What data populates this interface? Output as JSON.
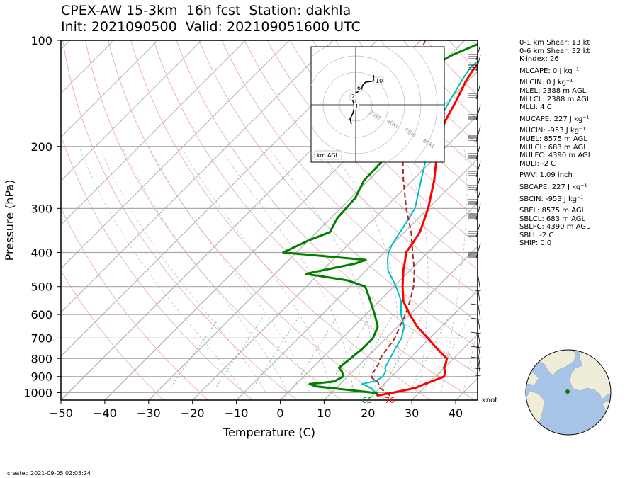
{
  "title": {
    "line1": "CPEX-AW 15-3km  16h fcst  Station: dakhla",
    "line2": "Init: 2021090500  Valid: 202109051600 UTC"
  },
  "parameters": [
    "0-1 km Shear: 13 kt",
    "0-6 km Shear: 32 kt",
    "K-index: 26",
    "MLCAPE: 0 J kg⁻¹",
    "MLCIN: 0 J kg⁻¹",
    "MLEL: 2388 m AGL",
    "MLLCL: 2388 m AGL",
    "MLLI: 4 C",
    "MUCAPE: 227 J kg⁻¹",
    "MUCIN: -953 J kg⁻¹",
    "MUEL: 8575 m AGL",
    "MULCL: 683 m AGL",
    "MULFC: 4390 m AGL",
    "MULI: -2 C",
    "PWV: 1.09 inch",
    "SBCAPE: 227 J kg⁻¹",
    "SBCIN: -953 J kg⁻¹",
    "SBEL: 8575 m AGL",
    "SBLCL: 683 m AGL",
    "SBLFC: 4390 m AGL",
    "SBLI: -2 C",
    "SHIP: 0.0"
  ],
  "created": "created 2021-09-05 02:05:24",
  "knot_label": "knot",
  "hodograph": {
    "height_label": "km AGL",
    "ring_labels": [
      "20kt",
      "40kt",
      "60kt",
      "80kt"
    ],
    "height_markers": [
      "1",
      "2",
      "6",
      "10"
    ]
  },
  "chart_data": {
    "type": "line",
    "xlabel": "Temperature (C)",
    "ylabel": "Pressure (hPa)",
    "xlim": [
      -50,
      45
    ],
    "ylim": [
      1050,
      100
    ],
    "y_scale": "log",
    "x_ticks": [
      "−50",
      "−40",
      "−30",
      "−20",
      "−10",
      "0",
      "10",
      "20",
      "30",
      "40"
    ],
    "y_ticks": [
      "100",
      "200",
      "300",
      "400",
      "500",
      "600",
      "700",
      "800",
      "900",
      "1000"
    ],
    "surface_labels": {
      "dewpoint": "66",
      "temperature": "76"
    },
    "colors": {
      "temperature": "#ff0000",
      "dewpoint": "#008000",
      "wetbulb": "#00bfbf",
      "parcel": "#a52a2a"
    },
    "series": [
      {
        "key": "temperature",
        "p": [
          1020,
          1000,
          970,
          940,
          925,
          900,
          870,
          850,
          830,
          800,
          750,
          700,
          650,
          600,
          550,
          500,
          450,
          420,
          400,
          380,
          350,
          300,
          250,
          200,
          170,
          150,
          130,
          120,
          110,
          100
        ],
        "t": [
          21,
          24,
          28,
          29.5,
          30.5,
          32,
          31,
          30,
          29.5,
          28.5,
          24,
          19.5,
          14.5,
          10,
          5.5,
          2,
          -1.5,
          -3.5,
          -5,
          -5.5,
          -6.5,
          -10,
          -15,
          -22,
          -26,
          -28,
          -30.5,
          -31.5,
          -31.5,
          -29.5
        ]
      },
      {
        "key": "dewpoint",
        "p": [
          1020,
          1005,
          1000,
          960,
          945,
          930,
          900,
          870,
          850,
          800,
          750,
          700,
          650,
          600,
          550,
          500,
          480,
          460,
          430,
          420,
          400,
          370,
          350,
          320,
          280,
          250,
          200,
          170,
          160,
          140,
          120,
          110,
          100
        ],
        "t": [
          21,
          20.5,
          19.5,
          5,
          3,
          8,
          9,
          7.5,
          6,
          6.5,
          7,
          7,
          5.5,
          2,
          -2,
          -6.5,
          -12,
          -23,
          -14,
          -12.5,
          -33,
          -30,
          -27,
          -28.5,
          -29,
          -31,
          -31.5,
          -33.5,
          -33.5,
          -38,
          -42,
          -39.5,
          -35
        ]
      },
      {
        "key": "wetbulb",
        "p": [
          1020,
          1000,
          970,
          945,
          925,
          900,
          870,
          850,
          800,
          750,
          700,
          650,
          600,
          550,
          500,
          450,
          420,
          400,
          380,
          350,
          300,
          250,
          200,
          170,
          150,
          130,
          120,
          110,
          100
        ],
        "t": [
          21,
          20,
          18,
          15,
          17.5,
          18,
          17.5,
          16.5,
          15.5,
          14.5,
          13.5,
          11.5,
          8,
          5,
          0.5,
          -5,
          -7.5,
          -9,
          -10,
          -11,
          -13,
          -18,
          -24,
          -27.5,
          -29.5,
          -31.5,
          -32.5,
          -32,
          -30
        ]
      },
      {
        "key": "parcel",
        "p": [
          1020,
          1000,
          970,
          950,
          930,
          910,
          890,
          870,
          850,
          820,
          800,
          780,
          760,
          740,
          720,
          700,
          650,
          600,
          550,
          500,
          450,
          400,
          350,
          300,
          250,
          200,
          150,
          130,
          120,
          110,
          100
        ],
        "t": [
          24,
          22.5,
          20,
          19,
          18,
          16,
          15,
          14.8,
          14.5,
          14,
          13.3,
          13,
          12.8,
          12.5,
          12.3,
          12,
          10.5,
          9,
          7,
          4.5,
          1,
          -3.5,
          -8.5,
          -15,
          -22,
          -30,
          -40,
          -43,
          -45,
          -47,
          -49
        ]
      }
    ]
  }
}
